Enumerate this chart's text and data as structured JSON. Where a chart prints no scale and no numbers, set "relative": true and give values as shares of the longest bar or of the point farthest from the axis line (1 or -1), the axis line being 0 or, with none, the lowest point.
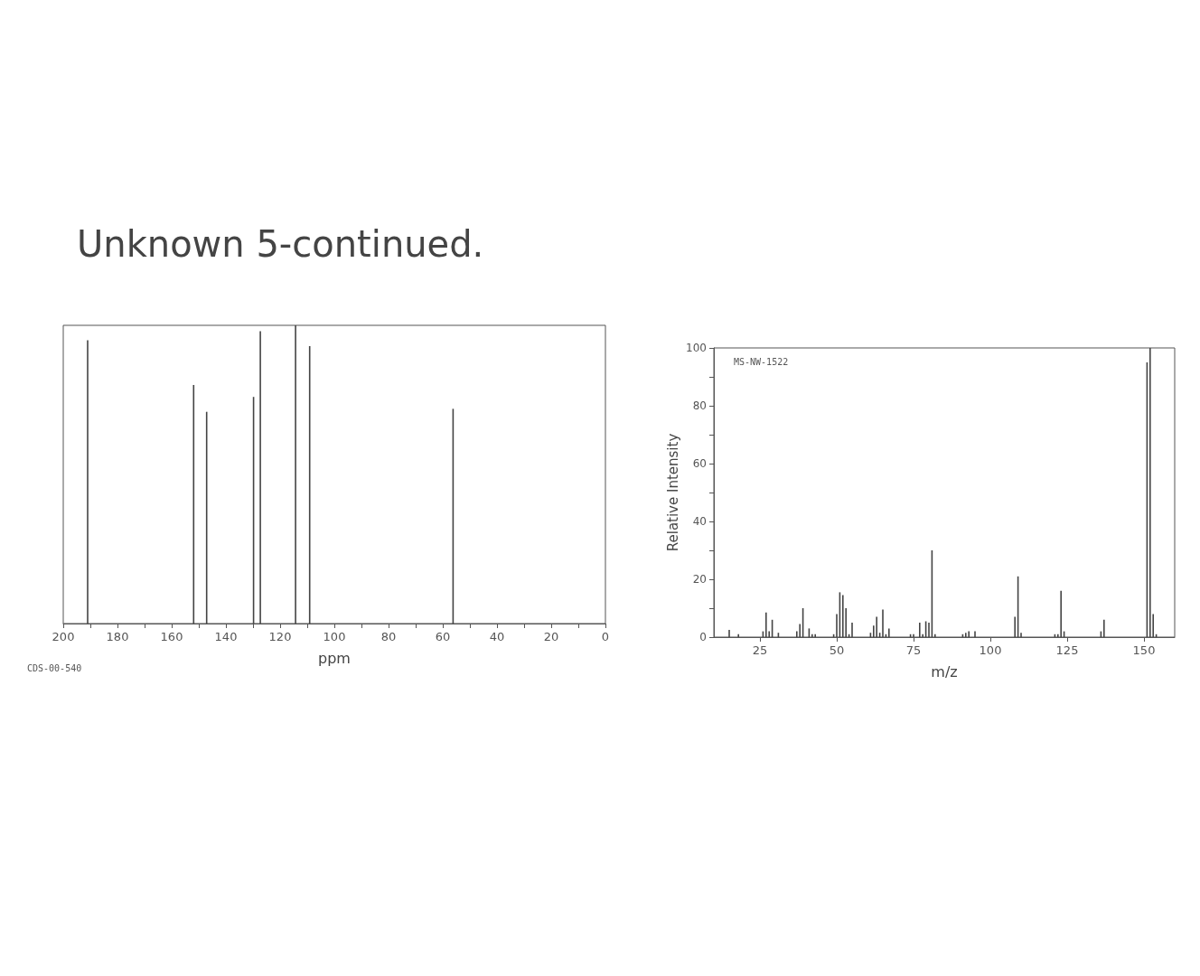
{
  "chart_data": [
    {
      "type": "bar",
      "title": "Unknown 5-continued.",
      "xlabel": "ppm",
      "relative": true,
      "tick_labels": "x",
      "grid": false,
      "color": "#444444",
      "x": [
        191,
        151.9,
        147.1,
        129.8,
        127.3,
        114.3,
        109.1,
        56.2
      ],
      "values": [
        0.95,
        0.8,
        0.71,
        0.76,
        0.98,
        1,
        0.93,
        0.72
      ],
      "xlim": [
        200,
        0
      ],
      "xticks": [
        200,
        {
          "value": 190,
          "label": null
        },
        180,
        {
          "value": 170,
          "label": null
        },
        160,
        {
          "value": 150,
          "label": null
        },
        140,
        {
          "value": 130,
          "label": null
        },
        120,
        {
          "value": 110,
          "label": null
        },
        100,
        {
          "value": 90,
          "label": null
        },
        80,
        {
          "value": 70,
          "label": null
        },
        60,
        {
          "value": 50,
          "label": null
        },
        40,
        {
          "value": 30,
          "label": null
        },
        20,
        {
          "value": 10,
          "label": null
        },
        0
      ],
      "annotations": [
        "CDS-00-540"
      ]
    },
    {
      "type": "bar",
      "xlabel": "m/z",
      "ylabel": "Relative Intensity",
      "grid": false,
      "color": "#444444",
      "x": [
        15,
        18,
        26,
        27,
        28,
        29,
        31,
        37,
        38,
        39,
        41,
        42,
        43,
        49,
        50,
        51,
        52,
        53,
        54,
        55,
        61,
        62,
        63,
        64,
        65,
        66,
        67,
        74,
        75,
        77,
        78,
        79,
        80,
        81,
        82,
        91,
        92,
        93,
        95,
        108,
        109,
        110,
        121,
        122,
        123,
        124,
        136,
        137,
        151,
        152,
        153,
        154
      ],
      "values": [
        2.5,
        1,
        2,
        8.5,
        2,
        6,
        1.5,
        2,
        4.5,
        10,
        3,
        1,
        1,
        1,
        8,
        15.5,
        14.5,
        10,
        1,
        5,
        1.5,
        4,
        7,
        1.5,
        9.5,
        1,
        3,
        1,
        1,
        5,
        1,
        5.5,
        5,
        30,
        1,
        1,
        1.5,
        2,
        2,
        7,
        21,
        1.5,
        1,
        1,
        16,
        2,
        2,
        6,
        95,
        100,
        8,
        1
      ],
      "xlim": [
        10,
        160
      ],
      "xticks": [
        25,
        50,
        75,
        100,
        125,
        150
      ],
      "ylim": [
        0,
        100
      ],
      "yticks": [
        0,
        {
          "value": 10,
          "label": null
        },
        20,
        {
          "value": 30,
          "label": null
        },
        40,
        {
          "value": 50,
          "label": null
        },
        60,
        {
          "value": 70,
          "label": null
        },
        80,
        {
          "value": 90,
          "label": null
        },
        100
      ],
      "annotations": [
        "MS-NW-1522"
      ]
    }
  ]
}
